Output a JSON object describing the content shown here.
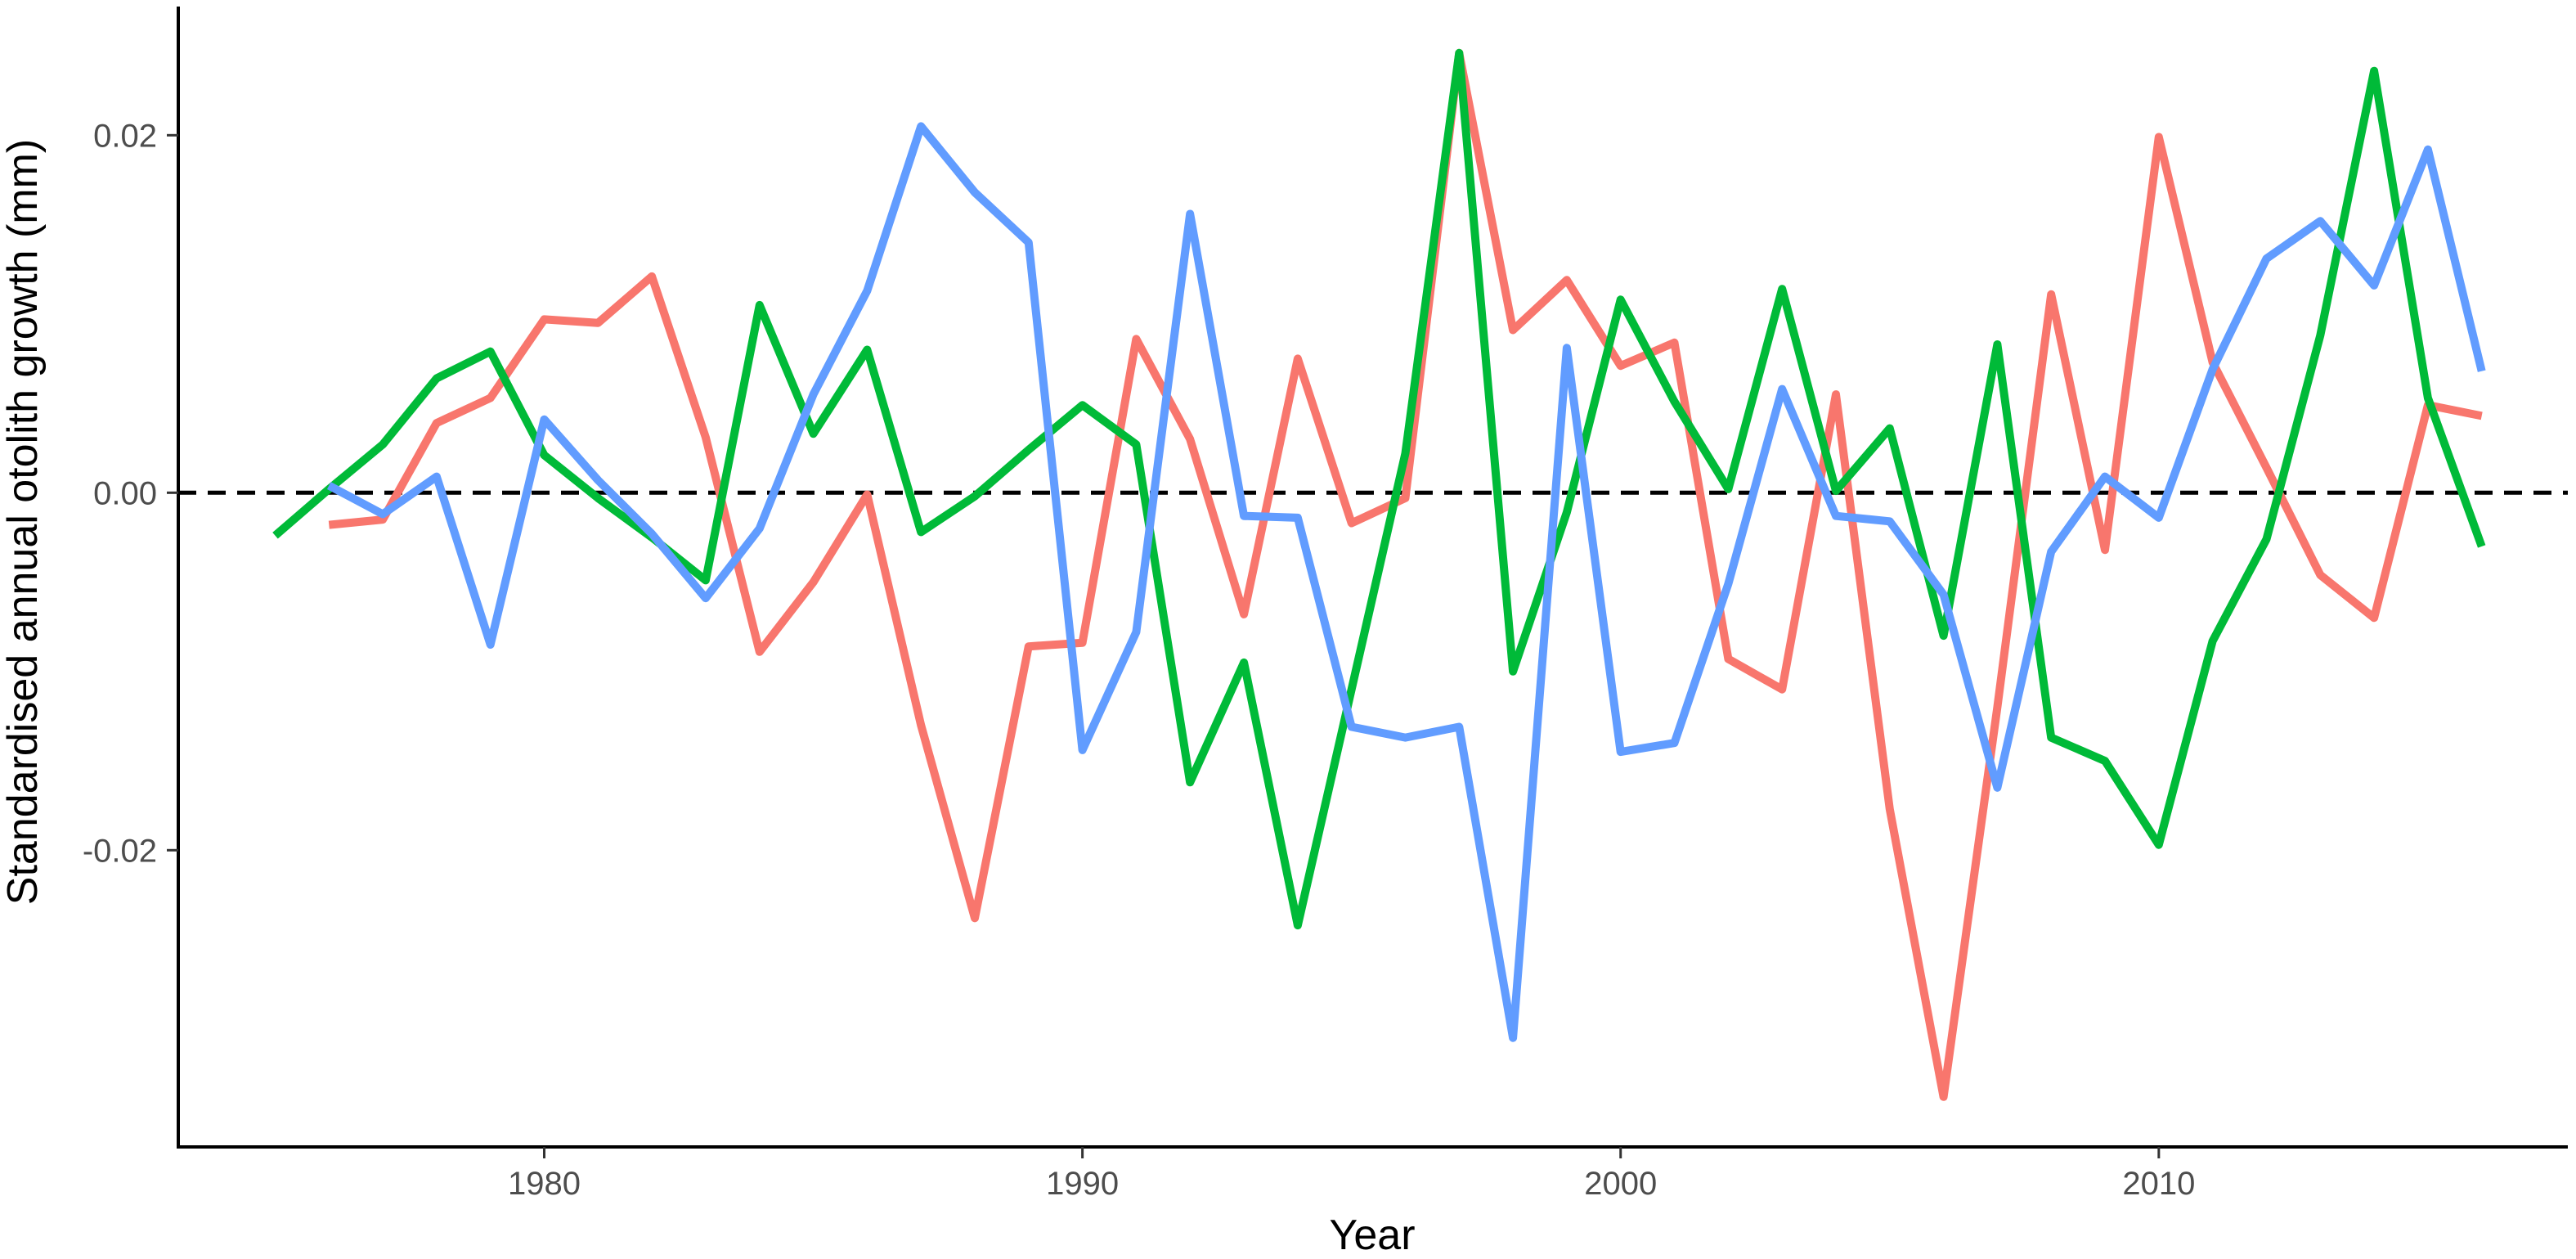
{
  "chart_data": {
    "type": "line",
    "title": "",
    "xlabel": "Year",
    "ylabel": "Standardised annual otolith growth (mm)",
    "xlim": [
      1973.2,
      2017.6
    ],
    "ylim": [
      -0.0366,
      0.0272
    ],
    "x_ticks": [
      {
        "value": 1980,
        "label": "1980"
      },
      {
        "value": 1990,
        "label": "1990"
      },
      {
        "value": 2000,
        "label": "2000"
      },
      {
        "value": 2010,
        "label": "2010"
      }
    ],
    "y_ticks": [
      {
        "value": -0.02,
        "label": "-0.02"
      },
      {
        "value": 0.0,
        "label": "0.00"
      },
      {
        "value": 0.02,
        "label": "0.02"
      }
    ],
    "reference_line": {
      "y": 0,
      "style": "dashed",
      "color": "#000000"
    },
    "grid": false,
    "legend": "none",
    "series": [
      {
        "color": "#F8766D",
        "x": [
          1976,
          1977,
          1978,
          1979,
          1980,
          1981,
          1982,
          1983,
          1984,
          1985,
          1986,
          1987,
          1988,
          1989,
          1990,
          1991,
          1992,
          1993,
          1994,
          1995,
          1996,
          1997,
          1998,
          1999,
          2000,
          2001,
          2002,
          2003,
          2004,
          2005,
          2006,
          2007,
          2008,
          2009,
          2010,
          2011,
          2012,
          2013,
          2014,
          2015,
          2016
        ],
        "y": [
          -0.0018,
          -0.0015,
          0.0039,
          0.0053,
          0.0097,
          0.0095,
          0.0121,
          0.0031,
          -0.0089,
          -0.005,
          -0.0001,
          -0.013,
          -0.0238,
          -0.0086,
          -0.0084,
          0.0086,
          0.003,
          -0.0068,
          0.0075,
          -0.0017,
          -0.0003,
          0.0246,
          0.0091,
          0.0119,
          0.0071,
          0.0084,
          -0.0093,
          -0.011,
          0.0055,
          -0.0177,
          -0.0338,
          -0.012,
          0.0111,
          -0.0032,
          0.0199,
          0.0073,
          0.0014,
          -0.0046,
          -0.007,
          0.0049,
          0.0043
        ]
      },
      {
        "color": "#00BA38",
        "x": [
          1975,
          1976,
          1977,
          1978,
          1979,
          1980,
          1981,
          1982,
          1983,
          1984,
          1985,
          1986,
          1987,
          1988,
          1989,
          1990,
          1991,
          1992,
          1993,
          1994,
          1995,
          1996,
          1997,
          1998,
          1999,
          2000,
          2001,
          2002,
          2003,
          2004,
          2005,
          2006,
          2007,
          2008,
          2009,
          2010,
          2011,
          2012,
          2013,
          2014,
          2015,
          2016
        ],
        "y": [
          -0.0024,
          0.0002,
          0.0027,
          0.0064,
          0.0079,
          0.0021,
          -0.0003,
          -0.0025,
          -0.0049,
          0.0105,
          0.0033,
          0.008,
          -0.0022,
          -0.0002,
          0.0024,
          0.0049,
          0.0027,
          -0.0162,
          -0.0095,
          -0.0242,
          -0.011,
          0.0022,
          0.0246,
          -0.01,
          -0.0011,
          0.0108,
          0.0051,
          0.0002,
          0.0114,
          0.0001,
          0.0036,
          -0.008,
          0.0083,
          -0.0137,
          -0.015,
          -0.0197,
          -0.0083,
          -0.0026,
          0.0088,
          0.0236,
          0.0053,
          -0.003
        ]
      },
      {
        "color": "#619CFF",
        "x": [
          1976,
          1977,
          1978,
          1979,
          1980,
          1981,
          1982,
          1983,
          1984,
          1985,
          1986,
          1987,
          1988,
          1989,
          1990,
          1991,
          1992,
          1993,
          1994,
          1995,
          1996,
          1997,
          1998,
          1999,
          2000,
          2001,
          2002,
          2003,
          2004,
          2005,
          2006,
          2007,
          2008,
          2009,
          2010,
          2011,
          2012,
          2013,
          2014,
          2015,
          2016
        ],
        "y": [
          0.0004,
          -0.0012,
          0.0009,
          -0.0085,
          0.0041,
          0.0007,
          -0.0023,
          -0.0059,
          -0.002,
          0.0055,
          0.0113,
          0.0205,
          0.0168,
          0.014,
          -0.0144,
          -0.0078,
          0.0156,
          -0.0013,
          -0.0014,
          -0.0131,
          -0.0137,
          -0.0131,
          -0.0305,
          0.0081,
          -0.0145,
          -0.014,
          -0.0051,
          0.0058,
          -0.0013,
          -0.0016,
          -0.0057,
          -0.0165,
          -0.0033,
          0.0009,
          -0.0014,
          0.0069,
          0.0131,
          0.0152,
          0.0116,
          0.0192,
          0.0068
        ]
      }
    ]
  }
}
